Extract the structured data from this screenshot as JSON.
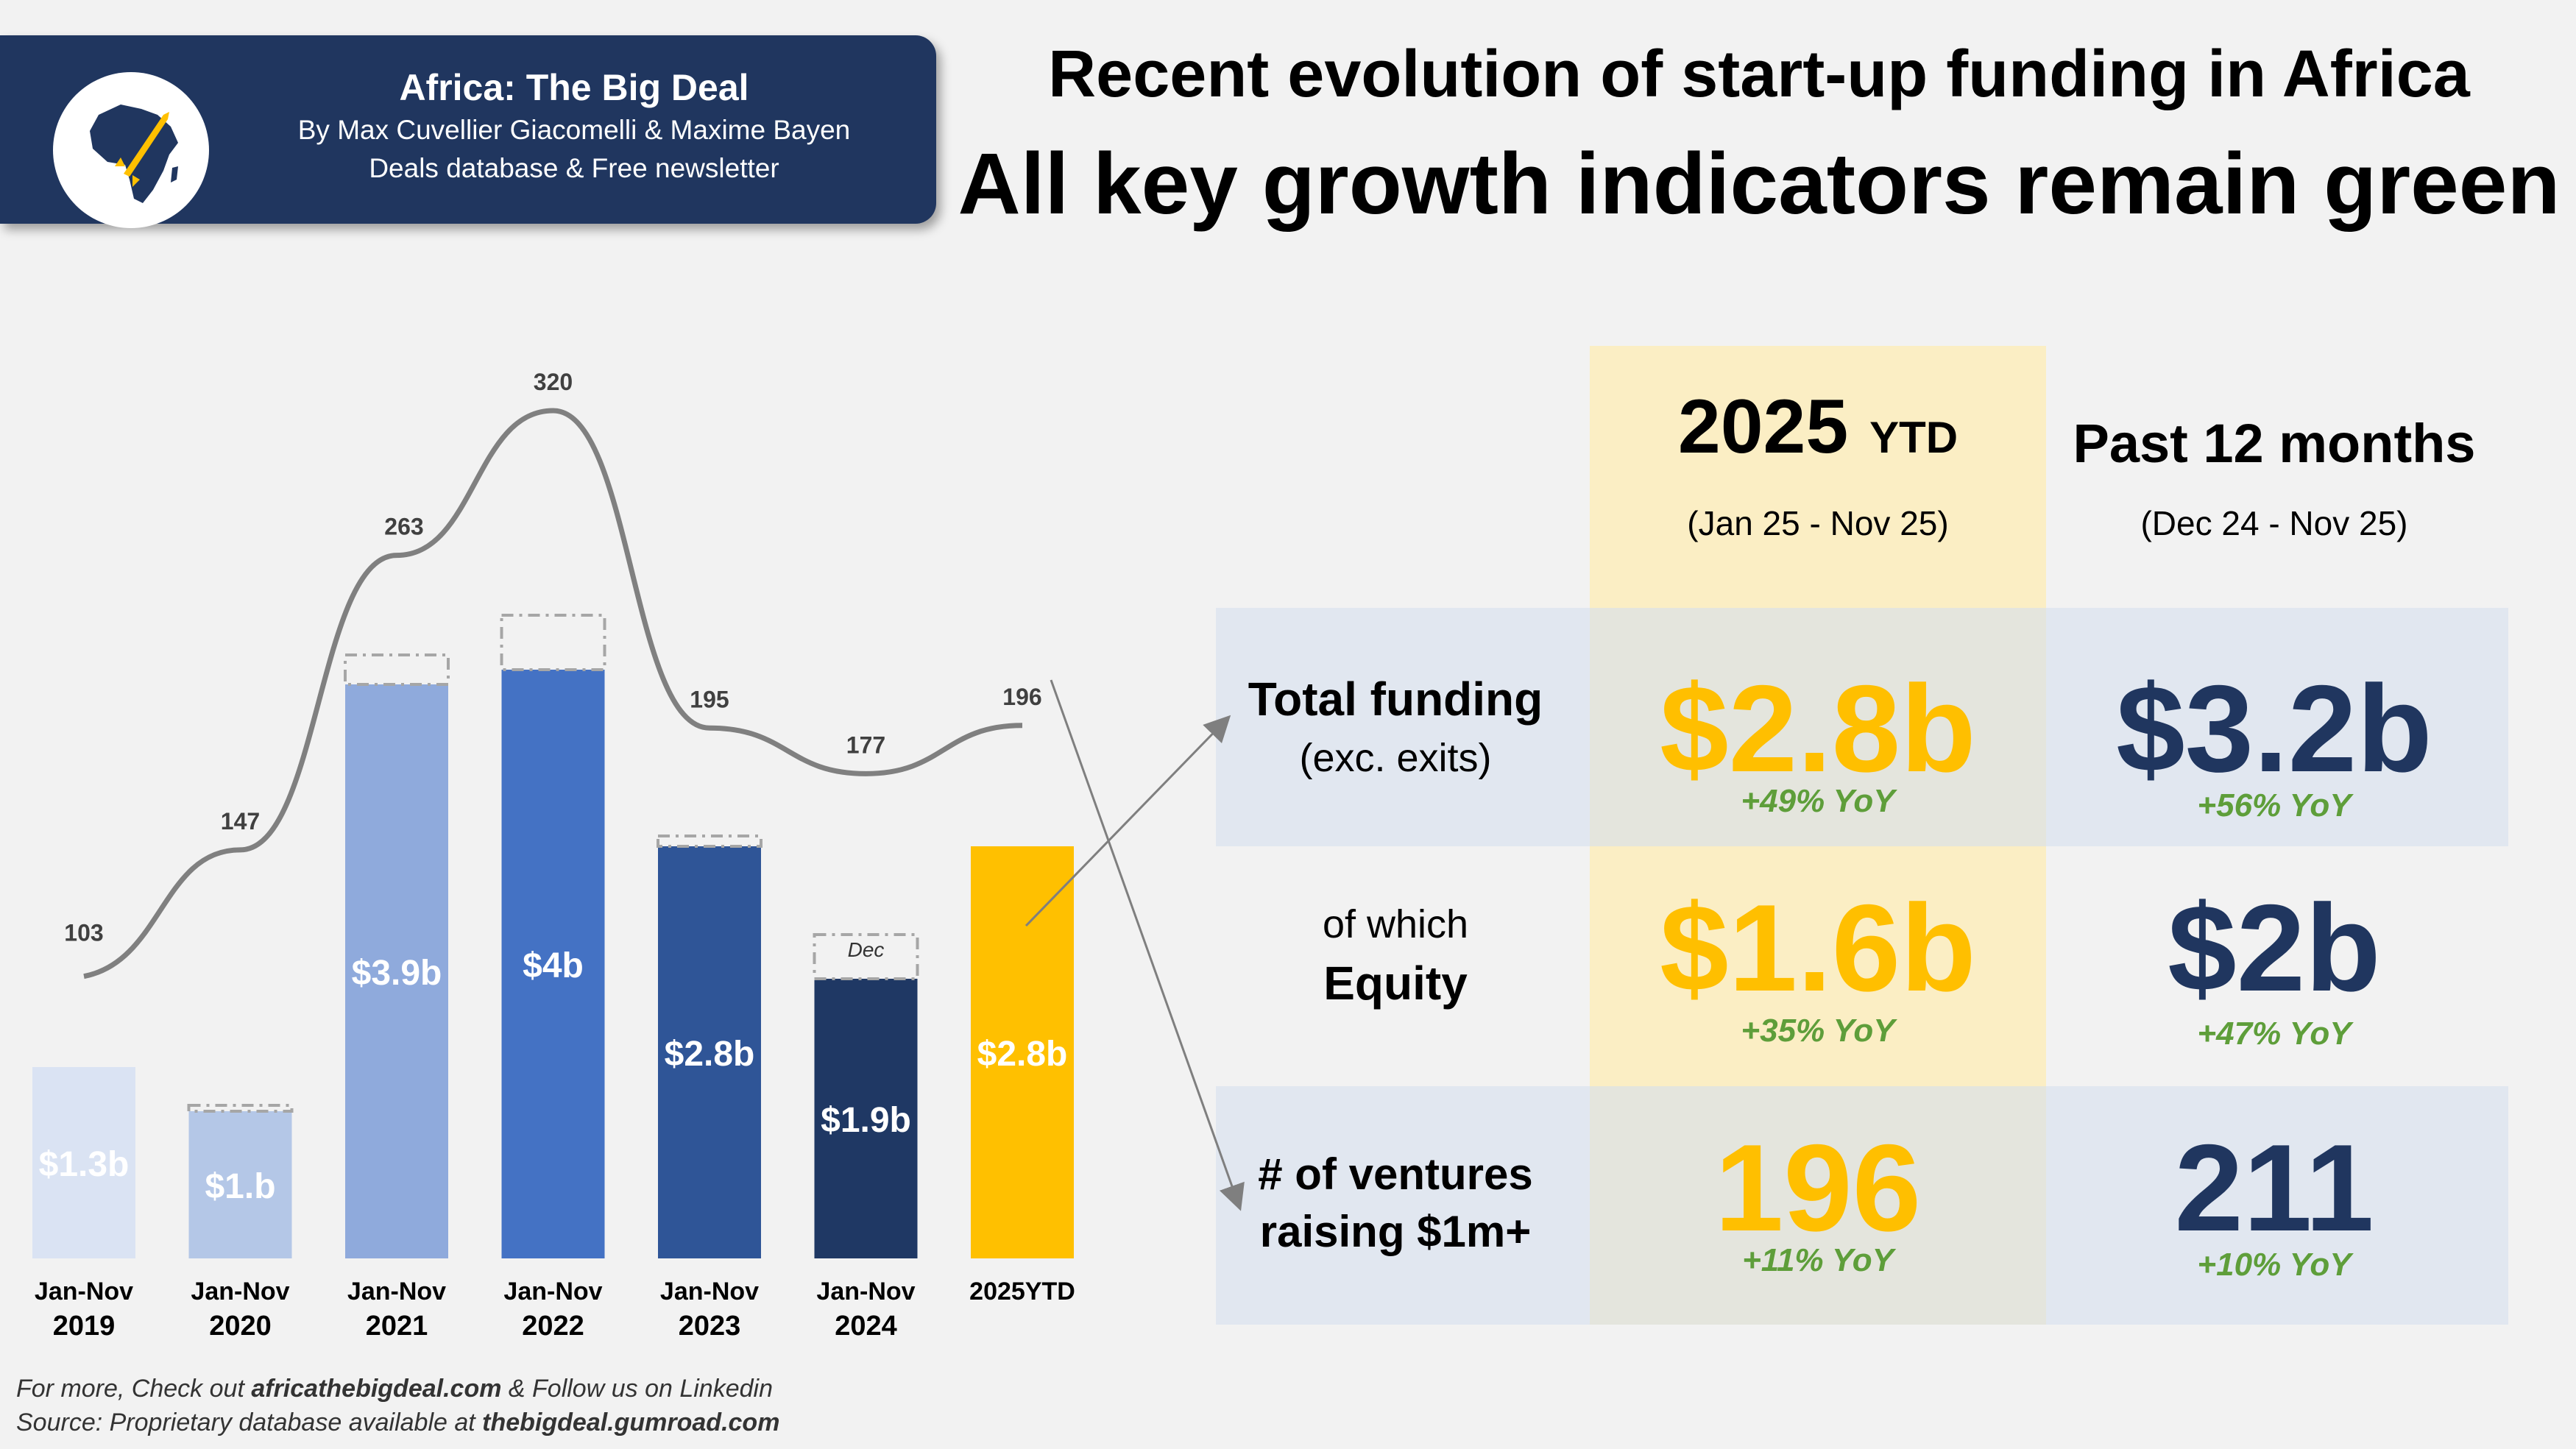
{
  "brand": {
    "title": "Africa: The Big Deal",
    "authors": "By Max Cuvellier Giacomelli & Maxime Bayen",
    "tagline": "Deals database & Free newsletter"
  },
  "headline": {
    "line1": "Recent evolution of start-up funding in Africa",
    "line2": "All key growth indicators remain green"
  },
  "chart_data": {
    "type": "bar",
    "title": "",
    "categories": [
      [
        "Jan-Nov",
        "2019"
      ],
      [
        "Jan-Nov",
        "2020"
      ],
      [
        "Jan-Nov",
        "2021"
      ],
      [
        "Jan-Nov",
        "2022"
      ],
      [
        "Jan-Nov",
        "2023"
      ],
      [
        "Jan-Nov",
        "2024"
      ],
      [
        "2025YTD",
        ""
      ]
    ],
    "series": [
      {
        "name": "Total funding (Jan-Nov, $b)",
        "values": [
          1.3,
          1.0,
          3.9,
          4.0,
          2.8,
          1.9,
          2.8
        ],
        "labels": [
          "$1.3b",
          "$1.b",
          "$3.9b",
          "$4b",
          "$2.8b",
          "$1.9b",
          "$2.8b"
        ]
      },
      {
        "name": "Full-year funding incl. December ($b, dashed outline)",
        "values": [
          1.3,
          1.04,
          4.1,
          4.37,
          2.87,
          2.2,
          null
        ]
      },
      {
        "name": "# of ventures raising $1m+",
        "values": [
          103,
          147,
          263,
          320,
          195,
          177,
          196
        ]
      }
    ],
    "bar_colors": [
      "#dae3f3",
      "#b4c7e7",
      "#8faadc",
      "#4472c4",
      "#2f5597",
      "#1f3864",
      "#ffc000"
    ],
    "annotation": "Dec",
    "ylim": [
      0,
      4.5
    ],
    "legend": "none"
  },
  "table": {
    "col1_header": "2025",
    "col1_header_suffix": "YTD",
    "col1_range": "(Jan 25 - Nov 25)",
    "col2_header": "Past 12 months",
    "col2_range": "(Dec 24 - Nov 25)",
    "rows": [
      {
        "label_line1": "Total funding",
        "label_line2": "(exc. exits)",
        "ytd_value": "$2.8b",
        "ytd_yoy": "+49% YoY",
        "ltm_value": "$3.2b",
        "ltm_yoy": "+56% YoY"
      },
      {
        "label_line1": "of which",
        "label_line2": "Equity",
        "ytd_value": "$1.6b",
        "ytd_yoy": "+35% YoY",
        "ltm_value": "$2b",
        "ltm_yoy": "+47% YoY"
      },
      {
        "label_line1": "# of ventures",
        "label_line2": "raising $1m+",
        "ytd_value": "196",
        "ytd_yoy": "+11% YoY",
        "ltm_value": "211",
        "ltm_yoy": "+10% YoY"
      }
    ]
  },
  "footer": {
    "line1_prefix": "For more, Check out ",
    "line1_site": "africathebigdeal.com",
    "line1_suffix": " & Follow us on Linkedin",
    "line2_prefix": "Source: Proprietary database available at ",
    "line2_site": "thebigdeal.gumroad.com"
  },
  "colors": {
    "navy": "#20365f",
    "gold": "#ffbf00",
    "green": "#5e9e3a",
    "ytd_band": "#fbeec4",
    "row_band": "#e6ebf3"
  }
}
